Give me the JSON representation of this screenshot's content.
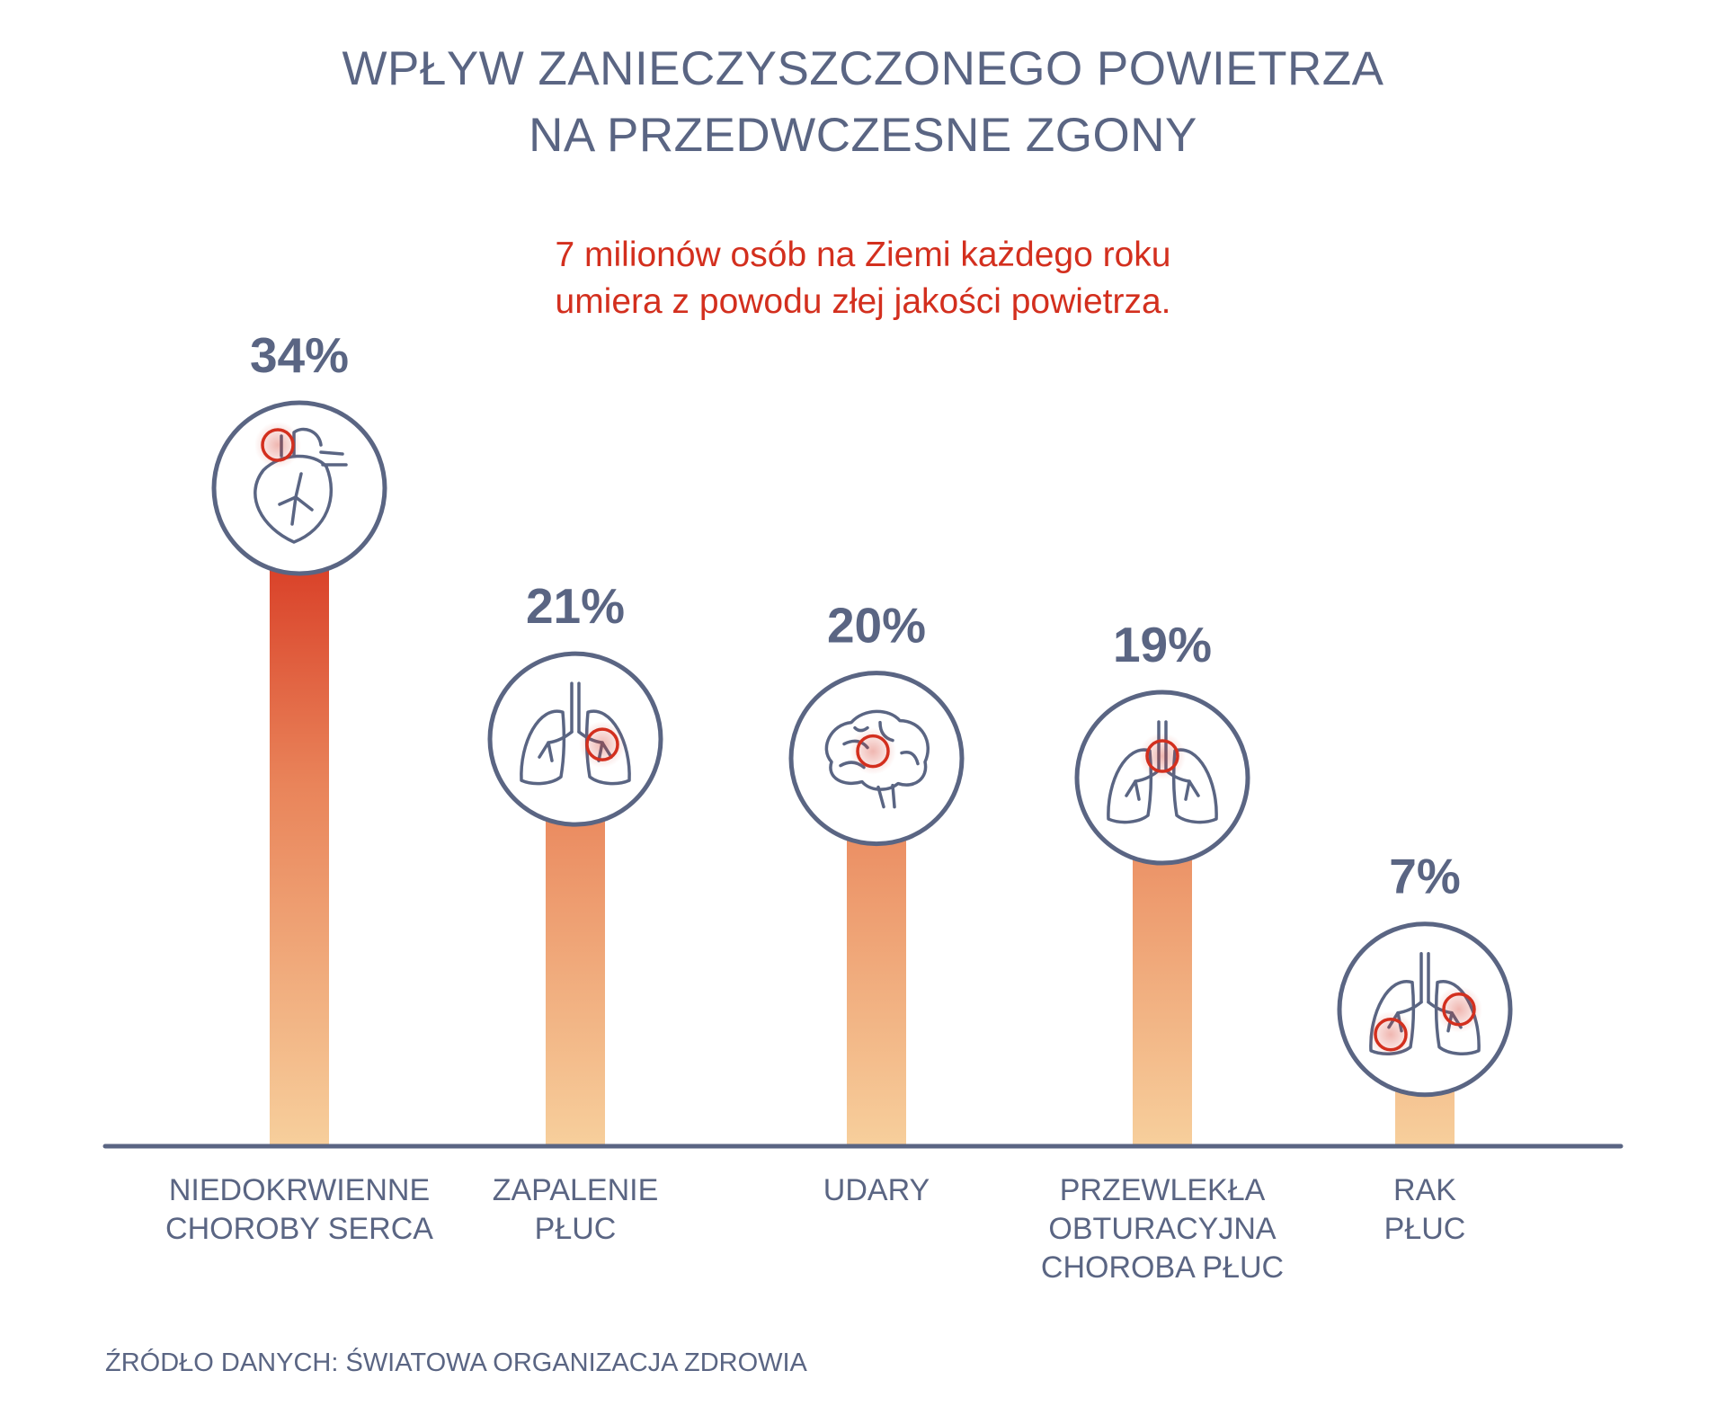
{
  "title_line1": "WPŁYW ZANIECZYSZCZONEGO POWIETRZA",
  "title_line2": "NA PRZEDWCZESNE ZGONY",
  "subtitle_line1": "7 milionów osób na Ziemi każdego roku",
  "subtitle_line2": "umiera z powodu złej jakości powietrza.",
  "source": "ŹRÓDŁO DANYCH: ŚWIATOWA ORGANIZACJA ZDROWIA",
  "colors": {
    "text": "#5a6583",
    "accent": "#d32f1e",
    "bar_top": "#d42a18",
    "bar_bottom": "#f7cf9c",
    "axis": "#5a6583"
  },
  "chart_data": {
    "type": "bar",
    "title": "WPŁYW ZANIECZYSZCZONEGO POWIETRZA NA PRZEDWCZESNE ZGONY",
    "unit": "%",
    "ylim": [
      0,
      34
    ],
    "grid": false,
    "categories": [
      {
        "lines": [
          "NIEDOKRWIENNE",
          "CHOROBY SERCA"
        ],
        "value": 34,
        "label": "34%",
        "icon": "heart-icon"
      },
      {
        "lines": [
          "ZAPALENIE",
          "PŁUC"
        ],
        "value": 21,
        "label": "21%",
        "icon": "lungs-icon"
      },
      {
        "lines": [
          "UDARY"
        ],
        "value": 20,
        "label": "20%",
        "icon": "brain-icon"
      },
      {
        "lines": [
          "PRZEWLEKŁA",
          "OBTURACYJNA",
          "CHOROBA PŁUC"
        ],
        "value": 19,
        "label": "19%",
        "icon": "lungs-icon"
      },
      {
        "lines": [
          "RAK",
          "PŁUC"
        ],
        "value": 7,
        "label": "7%",
        "icon": "lungs-icon"
      }
    ]
  }
}
